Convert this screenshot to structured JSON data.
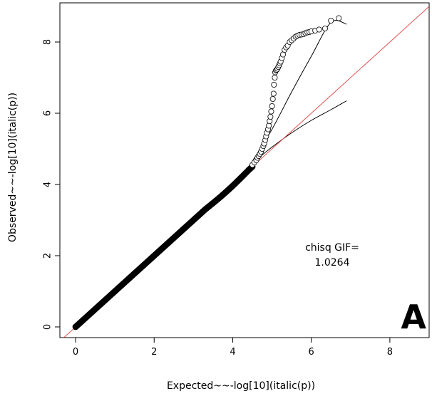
{
  "chart_data": {
    "type": "scatter",
    "xlabel": "Expected~~-log[10](italic(p))",
    "ylabel": "Observed~~-log[10](italic(p))",
    "xlim": [
      -0.4,
      9.0
    ],
    "ylim": [
      -0.3,
      9.1
    ],
    "x_ticks": [
      0,
      2,
      4,
      6,
      8
    ],
    "y_ticks": [
      0,
      2,
      4,
      6,
      8
    ],
    "x_tick_labels": [
      "0",
      "2",
      "4",
      "6",
      "8"
    ],
    "y_tick_labels": [
      "0",
      "2",
      "4",
      "6",
      "8"
    ],
    "grid": false,
    "colors": {
      "points": "#000000",
      "identity_line": "#e05050",
      "confidence_band": "#000000"
    },
    "annotations": {
      "gif_label": "chisq GIF=",
      "gif_value": "1.0264",
      "panel_letter": "A"
    },
    "identity_line": {
      "x": [
        -0.4,
        9.0
      ],
      "y": [
        -0.4,
        9.0
      ]
    },
    "confidence_band": {
      "x": [
        4.5,
        5.0,
        5.5,
        6.0,
        6.5,
        6.9
      ],
      "upper": [
        4.65,
        5.55,
        6.6,
        7.6,
        8.55,
        8.5
      ],
      "lower": [
        4.6,
        5.05,
        5.45,
        5.8,
        6.1,
        6.35
      ]
    },
    "bulk_points": {
      "x_from": 0.0,
      "x_to": 4.5,
      "points_per_unit": 60
    },
    "series": [
      {
        "x": [
          4.5,
          4.55,
          4.6,
          4.63,
          4.66,
          4.69,
          4.72,
          4.75,
          4.78,
          4.8,
          4.83,
          4.85,
          4.87,
          4.9,
          4.92,
          4.94,
          4.96,
          4.98,
          5.0,
          5.02,
          5.04,
          5.05,
          5.07,
          5.08,
          5.1,
          5.12,
          5.14,
          5.16,
          5.18,
          5.2,
          5.22,
          5.25,
          5.28,
          5.32,
          5.36,
          5.4,
          5.45,
          5.5,
          5.55,
          5.6,
          5.65,
          5.7,
          5.75,
          5.8,
          5.85,
          5.9,
          5.95,
          6.0,
          6.1,
          6.2,
          6.35,
          6.5,
          6.7
        ],
        "y": [
          4.55,
          4.62,
          4.68,
          4.75,
          4.8,
          4.86,
          4.92,
          5.0,
          5.08,
          5.15,
          5.25,
          5.35,
          5.45,
          5.55,
          5.65,
          5.78,
          5.9,
          6.05,
          6.2,
          6.4,
          6.55,
          6.8,
          7.0,
          7.15,
          7.2,
          7.22,
          7.25,
          7.3,
          7.35,
          7.4,
          7.45,
          7.55,
          7.65,
          7.78,
          7.85,
          7.9,
          8.0,
          8.05,
          8.1,
          8.15,
          8.18,
          8.2,
          8.21,
          8.22,
          8.25,
          8.27,
          8.28,
          8.3,
          8.32,
          8.35,
          8.38,
          8.6,
          8.67
        ]
      }
    ]
  }
}
